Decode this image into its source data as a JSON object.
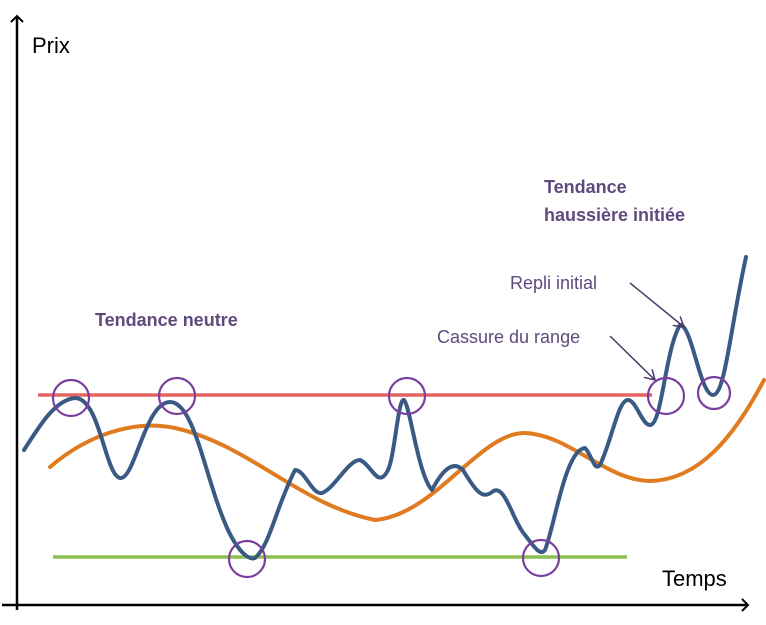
{
  "axes": {
    "y_label": "Prix",
    "x_label": "Temps"
  },
  "labels": {
    "neutral_trend": "Tendance neutre",
    "uptrend_line1": "Tendance",
    "uptrend_line2": "haussière initiée",
    "initial_pullback": "Repli initial",
    "range_break": "Cassure du range"
  },
  "lines": {
    "resistance_color": "#e46464",
    "support_color": "#8cc152",
    "price_color": "#3a5a84",
    "moving_average_color": "#e07b20",
    "marker_color": "#7a3f9e"
  }
}
